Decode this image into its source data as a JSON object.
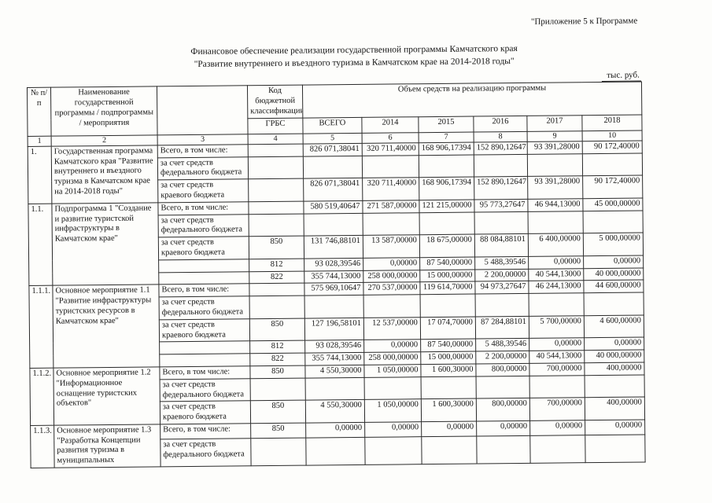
{
  "page": {
    "corner_note": "\"Приложение 5 к Программе",
    "title_line1": "Финансовое обеспечение реализации государственной программы Камчатского края",
    "title_line2": "\"Развитие внутреннего и въездного туризма в Камчатском крае на 2014-2018 годы\"",
    "units": "тыс. руб."
  },
  "table": {
    "headers": {
      "num": "№ п/п",
      "name": "Наименование государственной программы / подпрограммы / мероприятия",
      "budget_class": "Код бюджетной классификации",
      "grbs": "ГРБС",
      "volume": "Объем средств на реализацию программы",
      "total": "ВСЕГО",
      "years": [
        "2014",
        "2015",
        "2016",
        "2017",
        "2018"
      ]
    },
    "col_numbers": [
      "1",
      "2",
      "3",
      "4",
      "5",
      "6",
      "7",
      "8",
      "9",
      "10"
    ],
    "groups": [
      {
        "num": "1.",
        "name": "Государственная программа Камчатского края \"Развитие внутреннего и въездного туризма в Камчатском крае на 2014-2018 годы\"",
        "rows": [
          {
            "label": "Всего, в том числе:",
            "grbs": "",
            "values": [
              "826 071,38041",
              "320 711,40000",
              "168 906,17394",
              "152 890,12647",
              "93 391,28000",
              "90 172,40000"
            ]
          },
          {
            "label": "за счет средств федерального бюджета",
            "grbs": "",
            "values": [
              "",
              "",
              "",
              "",
              "",
              ""
            ]
          },
          {
            "label": "за счет средств краевого бюджета",
            "grbs": "",
            "values": [
              "826 071,38041",
              "320 711,40000",
              "168 906,17394",
              "152 890,12647",
              "93 391,28000",
              "90 172,40000"
            ]
          }
        ]
      },
      {
        "num": "1.1.",
        "name": "Подпрограмма 1 \"Создание и развитие туристской инфраструктуры в Камчатском крае\"",
        "rows": [
          {
            "label": "Всего, в том числе:",
            "grbs": "",
            "values": [
              "580 519,40647",
              "271 587,00000",
              "121 215,00000",
              "95 773,27647",
              "46 944,13000",
              "45 000,00000"
            ]
          },
          {
            "label": "за счет средств федерального бюджета",
            "grbs": "",
            "values": [
              "",
              "",
              "",
              "",
              "",
              ""
            ]
          },
          {
            "label": "за счет средств краевого бюджета",
            "grbs": "850",
            "values": [
              "131 746,88101",
              "13 587,00000",
              "18 675,00000",
              "88 084,88101",
              "6 400,00000",
              "5 000,00000"
            ]
          },
          {
            "label": "",
            "grbs": "812",
            "values": [
              "93 028,39546",
              "0,00000",
              "87 540,00000",
              "5 488,39546",
              "0,00000",
              "0,00000"
            ]
          },
          {
            "label": "",
            "grbs": "822",
            "values": [
              "355 744,13000",
              "258 000,00000",
              "15 000,00000",
              "2 200,00000",
              "40 544,13000",
              "40 000,00000"
            ]
          }
        ]
      },
      {
        "num": "1.1.1.",
        "name": "Основное мероприятие 1.1 \"Развитие инфраструктуры туристских ресурсов в Камчатском крае\"",
        "rows": [
          {
            "label": "Всего, в том числе:",
            "grbs": "",
            "values": [
              "575 969,10647",
              "270 537,00000",
              "119 614,70000",
              "94 973,27647",
              "46 244,13000",
              "44 600,00000"
            ]
          },
          {
            "label": "за счет средств федерального бюджета",
            "grbs": "",
            "values": [
              "",
              "",
              "",
              "",
              "",
              ""
            ]
          },
          {
            "label": "за счет средств краевого бюджета",
            "grbs": "850",
            "values": [
              "127 196,58101",
              "12 537,00000",
              "17 074,70000",
              "87 284,88101",
              "5 700,00000",
              "4 600,00000"
            ]
          },
          {
            "label": "",
            "grbs": "812",
            "values": [
              "93 028,39546",
              "0,00000",
              "87 540,00000",
              "5 488,39546",
              "0,00000",
              "0,00000"
            ]
          },
          {
            "label": "",
            "grbs": "822",
            "values": [
              "355 744,13000",
              "258 000,00000",
              "15 000,00000",
              "2 200,00000",
              "40 544,13000",
              "40 000,00000"
            ]
          }
        ]
      },
      {
        "num": "1.1.2.",
        "name": "Основное мероприятие 1.2 \"Информационное оснащение туристских объектов\"",
        "rows": [
          {
            "label": "Всего, в том числе:",
            "grbs": "850",
            "values": [
              "4 550,30000",
              "1 050,00000",
              "1 600,30000",
              "800,00000",
              "700,00000",
              "400,00000"
            ]
          },
          {
            "label": "за счет средств федерального бюджета",
            "grbs": "",
            "values": [
              "",
              "",
              "",
              "",
              "",
              ""
            ]
          },
          {
            "label": "за счет средств краевого бюджета",
            "grbs": "850",
            "values": [
              "4 550,30000",
              "1 050,00000",
              "1 600,30000",
              "800,00000",
              "700,00000",
              "400,00000"
            ]
          }
        ]
      },
      {
        "num": "1.1.3.",
        "name": "Основное мероприятие 1.3 \"Разработка Концепции развития туризма в муниципальных",
        "rows": [
          {
            "label": "Всего, в том числе:",
            "grbs": "850",
            "values": [
              "0,00000",
              "0,00000",
              "0,00000",
              "0,00000",
              "0,00000",
              "0,00000"
            ]
          },
          {
            "label": "за счет средств федерального бюджета",
            "grbs": "",
            "values": [
              "",
              "",
              "",
              "",
              "",
              ""
            ]
          }
        ]
      }
    ]
  }
}
